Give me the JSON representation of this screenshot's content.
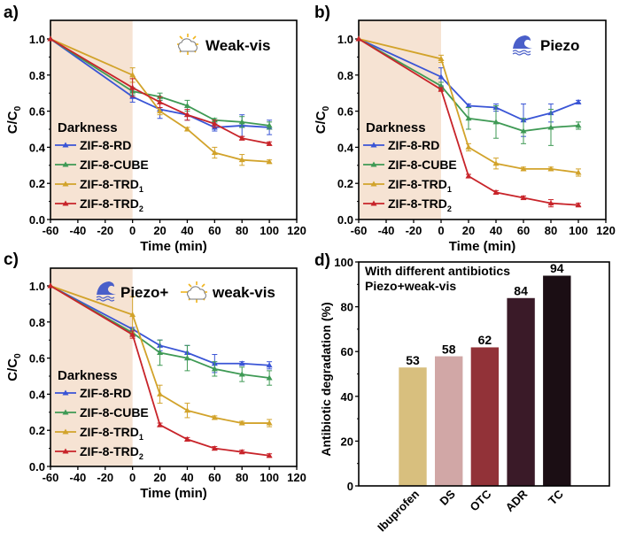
{
  "colors": {
    "ZIF-8-RD": "#3a55d6",
    "ZIF-8-CUBE": "#3f9a55",
    "ZIF-8-TRD1": "#d2a32b",
    "ZIF-8-TRD2": "#c8242a",
    "darkness_shade": "#f6e3d3",
    "piezo_icon": "#4a5fc9",
    "sun_icon": "#f0b41c"
  },
  "chart_data": [
    {
      "id": "a",
      "panel_label": "a)",
      "type": "line",
      "title": "Weak-vis",
      "condition_icons": [
        "sun-cloud-icon"
      ],
      "xlabel": "Time (min)",
      "ylabel": "C/C0",
      "xlim": [
        -60,
        120
      ],
      "ylim": [
        0,
        1.0
      ],
      "xticks": [
        "-60",
        "-40",
        "-20",
        "0",
        "20",
        "40",
        "60",
        "80",
        "100",
        "120"
      ],
      "yticks": [
        "0.0",
        "0.2",
        "0.4",
        "0.6",
        "0.8",
        "1.0"
      ],
      "shaded_region": {
        "label": "Darkness",
        "x": [
          -60,
          0
        ]
      },
      "legend_title": "Darkness",
      "legend_position": "bottom-left",
      "x": [
        -60,
        0,
        20,
        40,
        60,
        80,
        100
      ],
      "series": [
        {
          "name": "ZIF-8-RD",
          "label_main": "ZIF-8-RD",
          "label_sub": "",
          "values": [
            1.0,
            0.68,
            0.61,
            0.58,
            0.51,
            0.52,
            0.51
          ],
          "errors": [
            0,
            0.03,
            0.05,
            0.03,
            0.02,
            0.06,
            0.04
          ]
        },
        {
          "name": "ZIF-8-CUBE",
          "label_main": "ZIF-8-CUBE",
          "label_sub": "",
          "values": [
            1.0,
            0.71,
            0.68,
            0.63,
            0.55,
            0.54,
            0.52
          ],
          "errors": [
            0,
            0.02,
            0.02,
            0.03,
            0.01,
            0.03,
            0.02
          ]
        },
        {
          "name": "ZIF-8-TRD1",
          "label_main": "ZIF-8-TRD",
          "label_sub": "1",
          "values": [
            1.0,
            0.8,
            0.6,
            0.5,
            0.37,
            0.33,
            0.32
          ],
          "errors": [
            0,
            0.04,
            0.02,
            0.01,
            0.03,
            0.03,
            0.01
          ]
        },
        {
          "name": "ZIF-8-TRD2",
          "label_main": "ZIF-8-TRD",
          "label_sub": "2",
          "values": [
            1.0,
            0.73,
            0.65,
            0.58,
            0.53,
            0.45,
            0.42
          ],
          "errors": [
            0,
            0.05,
            0.03,
            0.03,
            0.02,
            0.01,
            0.01
          ]
        }
      ]
    },
    {
      "id": "b",
      "panel_label": "b)",
      "type": "line",
      "title": "Piezo",
      "condition_icons": [
        "wave-icon"
      ],
      "xlabel": "Time (min)",
      "ylabel": "C/C0",
      "xlim": [
        -60,
        120
      ],
      "ylim": [
        0,
        1.0
      ],
      "xticks": [
        "-60",
        "-40",
        "-20",
        "0",
        "20",
        "40",
        "60",
        "80",
        "100",
        "120"
      ],
      "yticks": [
        "0.0",
        "0.2",
        "0.4",
        "0.6",
        "0.8",
        "1.0"
      ],
      "shaded_region": {
        "label": "Darkness",
        "x": [
          -60,
          0
        ]
      },
      "legend_title": "Darkness",
      "legend_position": "bottom-left",
      "x": [
        -60,
        0,
        20,
        40,
        60,
        80,
        100
      ],
      "series": [
        {
          "name": "ZIF-8-RD",
          "label_main": "ZIF-8-RD",
          "label_sub": "",
          "values": [
            1.0,
            0.79,
            0.63,
            0.62,
            0.55,
            0.59,
            0.65
          ],
          "errors": [
            0,
            0.05,
            0.01,
            0.02,
            0.09,
            0.05,
            0.01
          ]
        },
        {
          "name": "ZIF-8-CUBE",
          "label_main": "ZIF-8-CUBE",
          "label_sub": "",
          "values": [
            1.0,
            0.74,
            0.56,
            0.54,
            0.49,
            0.51,
            0.52
          ],
          "errors": [
            0,
            0.02,
            0.06,
            0.09,
            0.07,
            0.1,
            0.02
          ]
        },
        {
          "name": "ZIF-8-TRD1",
          "label_main": "ZIF-8-TRD",
          "label_sub": "1",
          "values": [
            1.0,
            0.89,
            0.4,
            0.31,
            0.28,
            0.28,
            0.26
          ],
          "errors": [
            0,
            0.02,
            0.02,
            0.03,
            0.01,
            0.01,
            0.02
          ]
        },
        {
          "name": "ZIF-8-TRD2",
          "label_main": "ZIF-8-TRD",
          "label_sub": "2",
          "values": [
            1.0,
            0.72,
            0.24,
            0.15,
            0.12,
            0.09,
            0.08
          ],
          "errors": [
            0,
            0.01,
            0.01,
            0.01,
            0.01,
            0.02,
            0.01
          ]
        }
      ]
    },
    {
      "id": "c",
      "panel_label": "c)",
      "type": "line",
      "title": "Piezo+ weak-vis",
      "title_part1": "Piezo+",
      "title_part2": "weak-vis",
      "condition_icons": [
        "wave-icon",
        "sun-cloud-icon"
      ],
      "xlabel": "Time (min)",
      "ylabel": "C/C0",
      "xlim": [
        -60,
        120
      ],
      "ylim": [
        0,
        1.0
      ],
      "xticks": [
        "-60",
        "-40",
        "-20",
        "0",
        "20",
        "40",
        "60",
        "80",
        "100",
        "120"
      ],
      "yticks": [
        "0.0",
        "0.2",
        "0.4",
        "0.6",
        "0.8",
        "1.0"
      ],
      "shaded_region": {
        "label": "Darkness",
        "x": [
          -60,
          0
        ]
      },
      "legend_title": "Darkness",
      "legend_position": "bottom-left",
      "x": [
        -60,
        0,
        20,
        40,
        60,
        80,
        100
      ],
      "series": [
        {
          "name": "ZIF-8-RD",
          "label_main": "ZIF-8-RD",
          "label_sub": "",
          "values": [
            1.0,
            0.76,
            0.67,
            0.63,
            0.57,
            0.57,
            0.56
          ],
          "errors": [
            0,
            0.01,
            0.03,
            0.04,
            0.05,
            0.01,
            0.02
          ]
        },
        {
          "name": "ZIF-8-CUBE",
          "label_main": "ZIF-8-CUBE",
          "label_sub": "",
          "values": [
            1.0,
            0.74,
            0.63,
            0.6,
            0.54,
            0.51,
            0.49
          ],
          "errors": [
            0,
            0.02,
            0.07,
            0.07,
            0.04,
            0.04,
            0.04
          ]
        },
        {
          "name": "ZIF-8-TRD1",
          "label_main": "ZIF-8-TRD",
          "label_sub": "1",
          "values": [
            1.0,
            0.84,
            0.4,
            0.31,
            0.27,
            0.24,
            0.24
          ],
          "errors": [
            0,
            0.1,
            0.05,
            0.04,
            0.01,
            0.01,
            0.02
          ]
        },
        {
          "name": "ZIF-8-TRD2",
          "label_main": "ZIF-8-TRD",
          "label_sub": "2",
          "values": [
            1.0,
            0.73,
            0.23,
            0.15,
            0.1,
            0.08,
            0.06
          ],
          "errors": [
            0,
            0.02,
            0.01,
            0.01,
            0.01,
            0.01,
            0.01
          ]
        }
      ]
    },
    {
      "id": "d",
      "panel_label": "d)",
      "type": "bar",
      "annotation_lines": [
        "With different antibiotics",
        "Piezo+weak-vis"
      ],
      "xlabel": "",
      "ylabel": "Antibiotic degradation (%)",
      "ylim": [
        0,
        100
      ],
      "yticks": [
        "0",
        "20",
        "40",
        "60",
        "80",
        "100"
      ],
      "categories": [
        "Ibuprofen",
        "DS",
        "OTC",
        "ADR",
        "TC"
      ],
      "values": [
        53,
        58,
        62,
        84,
        94
      ],
      "data_labels": [
        "53",
        "58",
        "62",
        "84",
        "94"
      ],
      "bar_colors": [
        "#d8bf7e",
        "#d1a7a6",
        "#923238",
        "#3a1a28",
        "#1b0e14"
      ]
    }
  ]
}
